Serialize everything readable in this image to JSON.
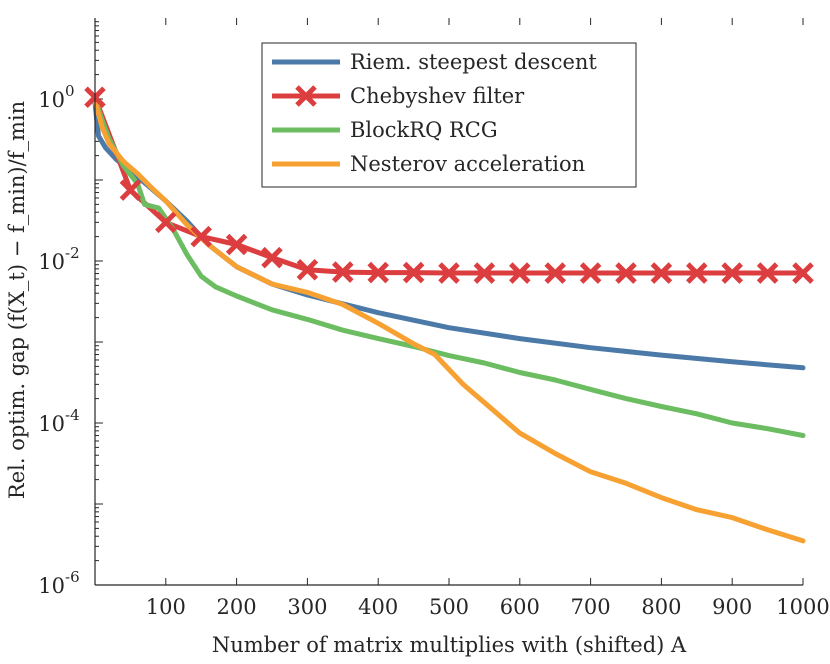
{
  "chart_data": {
    "type": "line",
    "title": "",
    "xlabel": "Number of matrix multiplies with (shifted) A",
    "ylabel": "Rel. optim. gap (f(X_t) − f_min)/f_min",
    "xlim": [
      0,
      1000
    ],
    "ylim": [
      1e-06,
      10
    ],
    "yscale": "log",
    "x_ticks": [
      100,
      200,
      300,
      400,
      500,
      600,
      700,
      800,
      900,
      1000
    ],
    "x_tick_labels": [
      "100",
      "200",
      "300",
      "400",
      "500",
      "600",
      "700",
      "800",
      "900",
      "1000"
    ],
    "y_ticks": [
      1,
      0.01,
      0.0001,
      1e-06
    ],
    "y_tick_labels": [
      {
        "base": "10",
        "exp": "0"
      },
      {
        "base": "10",
        "exp": "-2"
      },
      {
        "base": "10",
        "exp": "-4"
      },
      {
        "base": "10",
        "exp": "-6"
      }
    ],
    "legend_position": "top-right",
    "series": [
      {
        "name": "Riem. steepest descent",
        "color": "#4c7aa8",
        "x": [
          0,
          5,
          15,
          30,
          50,
          75,
          100,
          130,
          160,
          200,
          250,
          300,
          400,
          500,
          600,
          700,
          800,
          900,
          1000
        ],
        "y": [
          0.9,
          0.35,
          0.25,
          0.18,
          0.13,
          0.085,
          0.055,
          0.031,
          0.016,
          0.0085,
          0.0052,
          0.0038,
          0.0023,
          0.0015,
          0.0011,
          0.00085,
          0.00069,
          0.00057,
          0.00048
        ]
      },
      {
        "name": "Chebyshev filter",
        "color": "#dc3d3f",
        "markers": true,
        "x": [
          0,
          50,
          100,
          150,
          200,
          250,
          300,
          350,
          400,
          450,
          500,
          550,
          600,
          650,
          700,
          750,
          800,
          850,
          900,
          950,
          1000
        ],
        "y": [
          1.05,
          0.075,
          0.03,
          0.02,
          0.016,
          0.011,
          0.0078,
          0.0073,
          0.0072,
          0.0072,
          0.0071,
          0.0071,
          0.0071,
          0.0071,
          0.0071,
          0.0071,
          0.0071,
          0.0071,
          0.0071,
          0.0071,
          0.0071
        ]
      },
      {
        "name": "BlockRQ RCG",
        "color": "#6cbd61",
        "x": [
          0,
          10,
          20,
          40,
          60,
          70,
          90,
          110,
          130,
          150,
          170,
          200,
          250,
          300,
          350,
          400,
          450,
          500,
          550,
          600,
          650,
          700,
          750,
          800,
          850,
          900,
          950,
          1000
        ],
        "y": [
          1.0,
          0.55,
          0.32,
          0.15,
          0.09,
          0.05,
          0.045,
          0.025,
          0.012,
          0.0065,
          0.0048,
          0.0037,
          0.0025,
          0.0019,
          0.0014,
          0.0011,
          0.00088,
          0.00068,
          0.00055,
          0.00042,
          0.00034,
          0.00026,
          0.0002,
          0.00016,
          0.00013,
          0.0001,
          8.5e-05,
          7e-05
        ]
      },
      {
        "name": "Nesterov acceleration",
        "color": "#f7a132",
        "x": [
          0,
          10,
          20,
          40,
          60,
          80,
          100,
          130,
          160,
          200,
          250,
          300,
          350,
          400,
          450,
          480,
          520,
          560,
          600,
          650,
          700,
          750,
          800,
          850,
          900,
          950,
          1000
        ],
        "y": [
          0.95,
          0.45,
          0.28,
          0.17,
          0.12,
          0.08,
          0.055,
          0.028,
          0.016,
          0.0085,
          0.0052,
          0.0041,
          0.0029,
          0.0017,
          0.00095,
          0.0007,
          0.0003,
          0.00015,
          7.5e-05,
          4.2e-05,
          2.5e-05,
          1.8e-05,
          1.2e-05,
          8.5e-06,
          6.8e-06,
          4.8e-06,
          3.5e-06
        ]
      }
    ]
  }
}
